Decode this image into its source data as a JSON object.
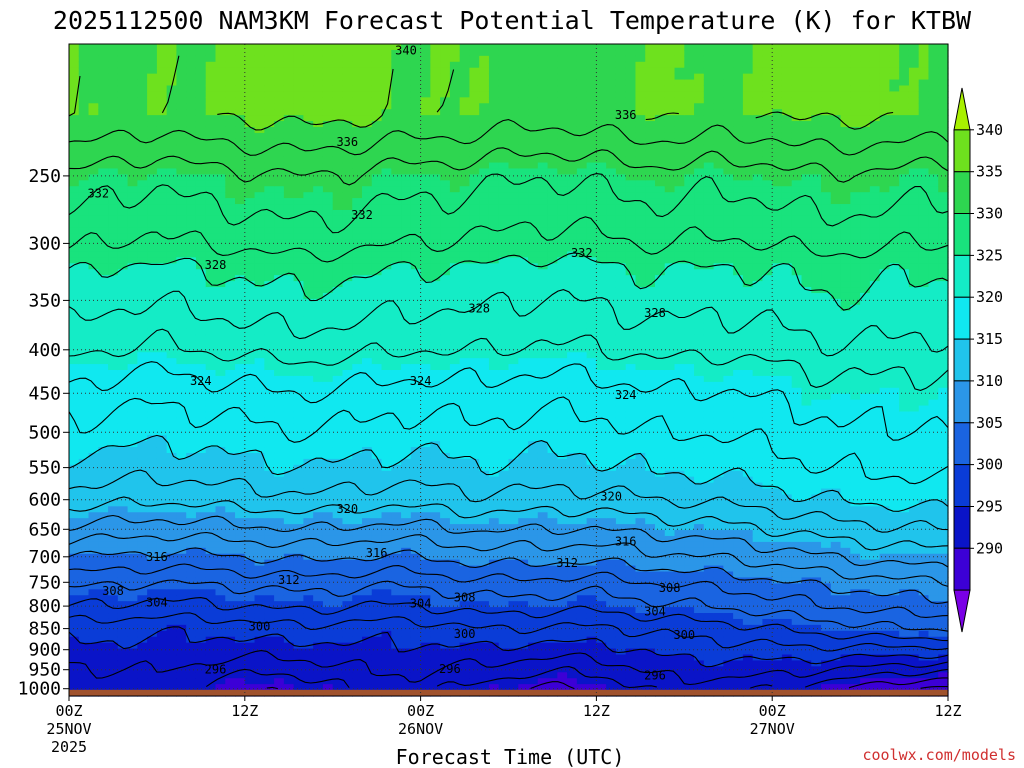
{
  "chart_data": {
    "type": "heatmap",
    "title": "2025112500 NAM3KM Forecast Potential Temperature (K) for KTBW",
    "xlabel": "Forecast Time (UTC)",
    "ylabel": "",
    "x_range_hours": [
      0,
      60
    ],
    "y_range_hpa": [
      1020,
      175
    ],
    "y_scale": "log-pressure",
    "x_ticks": [
      {
        "hour": 0,
        "lines": [
          "00Z",
          "25NOV",
          "2025"
        ]
      },
      {
        "hour": 12,
        "lines": [
          "12Z"
        ]
      },
      {
        "hour": 24,
        "lines": [
          "00Z",
          "26NOV"
        ]
      },
      {
        "hour": 36,
        "lines": [
          "12Z"
        ]
      },
      {
        "hour": 48,
        "lines": [
          "00Z",
          "27NOV"
        ]
      },
      {
        "hour": 60,
        "lines": [
          "12Z"
        ]
      }
    ],
    "y_ticks": [
      250,
      300,
      350,
      400,
      450,
      500,
      550,
      600,
      650,
      700,
      750,
      800,
      850,
      900,
      950,
      1000
    ],
    "colorbar": {
      "labels": [
        "340",
        "335",
        "330",
        "325",
        "320",
        "315",
        "310",
        "305",
        "300",
        "295",
        "290"
      ],
      "levels": [
        285,
        290,
        295,
        300,
        305,
        310,
        315,
        320,
        325,
        330,
        335,
        340,
        345
      ],
      "colors": [
        "#7a00e6",
        "#3c00d6",
        "#0a14c8",
        "#0a3cd7",
        "#1a64e1",
        "#2b96e8",
        "#20c4ec",
        "#10e8f0",
        "#14ecc6",
        "#19e37d",
        "#2ed650",
        "#6ee11e",
        "#a8f000"
      ]
    },
    "x_hours": [
      0,
      2,
      4,
      6,
      8,
      10,
      12,
      14,
      16,
      18,
      20,
      22,
      24,
      26,
      28,
      30,
      32,
      34,
      36,
      38,
      40,
      42,
      44,
      46,
      48,
      50,
      52,
      54,
      56,
      58,
      60
    ],
    "y_levels_hpa": [
      1000,
      975,
      950,
      925,
      900,
      875,
      850,
      825,
      800,
      775,
      750,
      725,
      700,
      675,
      650,
      625,
      600,
      575,
      550,
      525,
      500,
      475,
      450,
      425,
      400,
      375,
      350,
      325,
      300,
      275,
      250,
      225,
      200,
      175
    ],
    "theta_surface_by_hour": [
      295.5,
      296.5,
      297.0,
      297.0,
      296.5,
      295.0,
      294.5,
      294.0,
      294.5,
      295.5,
      296.5,
      297.0,
      297.0,
      296.0,
      295.0,
      294.5,
      294.0,
      293.5,
      294.0,
      295.5,
      296.5,
      297.0,
      297.0,
      296.5,
      296.0,
      295.5,
      294.5,
      293.5,
      292.5,
      292.0,
      291.5
    ],
    "layer_shift_by_hour": [
      0.0,
      -0.2,
      -0.4,
      -0.6,
      -0.5,
      -0.3,
      0.0,
      0.3,
      0.5,
      0.3,
      0.0,
      -0.2,
      0.0,
      0.5,
      1.0,
      0.9,
      0.8,
      0.7,
      0.6,
      1.0,
      1.5,
      1.8,
      2.0,
      2.5,
      3.0,
      3.5,
      4.0,
      4.4,
      4.8,
      5.0,
      5.2
    ],
    "upper_shift_by_hour": [
      0.0,
      -0.4,
      -0.8,
      -1.0,
      -0.6,
      -0.2,
      0.0,
      0.3,
      0.5,
      0.3,
      0.0,
      -0.4,
      -0.6,
      -0.6,
      -0.8,
      -1.2,
      -1.4,
      -1.3,
      -1.0,
      -0.6,
      -0.3,
      -0.5,
      -0.8,
      -0.7,
      -0.5,
      0.0,
      0.3,
      0.1,
      -0.2,
      -0.4,
      -0.5
    ],
    "profile_theta_by_level": [
      301.0,
      304.0,
      306.0,
      308.0,
      310.0,
      312.0,
      313.5,
      315.5,
      317.0,
      318.5,
      319.5,
      320.5,
      321.5,
      322.5,
      323.5,
      325.0,
      326.5,
      328.0,
      329.0,
      330.5,
      332.5,
      334.0,
      335.5,
      338.0,
      340.5
    ],
    "profile_pressure_hpa": [
      850,
      800,
      760,
      730,
      700,
      670,
      650,
      620,
      600,
      570,
      550,
      520,
      500,
      470,
      450,
      420,
      400,
      370,
      350,
      320,
      300,
      275,
      250,
      230,
      210
    ],
    "contour_label_values": [
      "340",
      "336",
      "336",
      "332",
      "332",
      "332",
      "328",
      "328",
      "328",
      "324",
      "324",
      "324",
      "320",
      "320",
      "316",
      "316",
      "316",
      "312",
      "312",
      "308",
      "308",
      "308",
      "304",
      "304",
      "304",
      "300",
      "300",
      "300",
      "296",
      "296",
      "296"
    ],
    "contour_label_positions": [
      [
        23,
        178
      ],
      [
        19,
        228
      ],
      [
        38,
        212
      ],
      [
        2,
        262
      ],
      [
        20,
        278
      ],
      [
        35,
        308
      ],
      [
        10,
        318
      ],
      [
        28,
        358
      ],
      [
        40,
        362
      ],
      [
        9,
        435
      ],
      [
        24,
        435
      ],
      [
        38,
        452
      ],
      [
        19,
        615
      ],
      [
        37,
        595
      ],
      [
        6,
        700
      ],
      [
        21,
        693
      ],
      [
        38,
        672
      ],
      [
        15,
        745
      ],
      [
        34,
        712
      ],
      [
        3,
        768
      ],
      [
        27,
        782
      ],
      [
        41,
        762
      ],
      [
        6,
        792
      ],
      [
        24,
        794
      ],
      [
        40,
        812
      ],
      [
        13,
        845
      ],
      [
        27,
        863
      ],
      [
        42,
        865
      ],
      [
        10,
        950
      ],
      [
        26,
        948
      ],
      [
        40,
        965
      ]
    ],
    "ground_pressure_hpa": 1020,
    "credit": "coolwx.com/models"
  }
}
